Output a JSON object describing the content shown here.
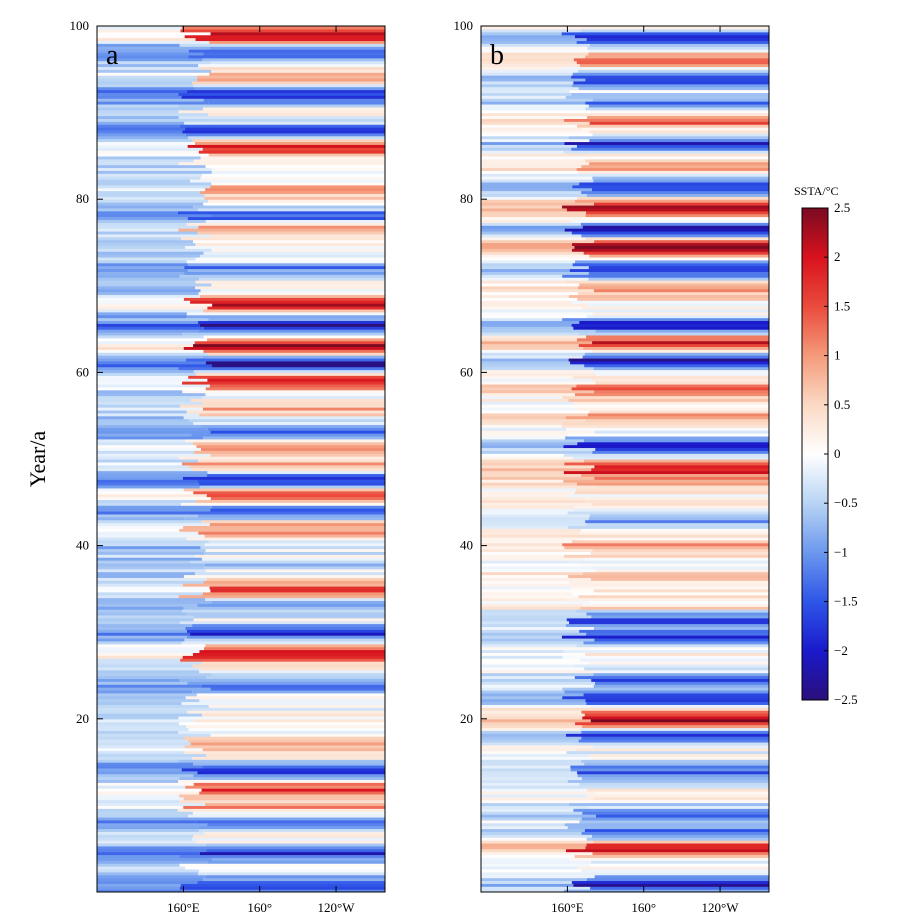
{
  "chart_data": [
    {
      "type": "heatmap",
      "panel_label": "a",
      "xlabel": "",
      "ylabel": "Year/a",
      "x_ticks": [
        "160°E",
        "160°",
        "120°W"
      ],
      "y_ticks": [
        20,
        40,
        60,
        80,
        100
      ],
      "ylim": [
        0,
        100
      ],
      "grid": false,
      "anomaly_events": [
        {
          "year": 1,
          "value": -1.6
        },
        {
          "year": 4.5,
          "value": -1.8
        },
        {
          "year": 8,
          "value": -1.2
        },
        {
          "year": 10,
          "value": 1.0
        },
        {
          "year": 12,
          "value": 1.6
        },
        {
          "year": 14,
          "value": -2.0
        },
        {
          "year": 17,
          "value": 0.8
        },
        {
          "year": 24,
          "value": -1.3
        },
        {
          "year": 27.5,
          "value": 1.9
        },
        {
          "year": 30,
          "value": -1.8
        },
        {
          "year": 33,
          "value": -0.9
        },
        {
          "year": 35,
          "value": 1.6
        },
        {
          "year": 38,
          "value": -0.6
        },
        {
          "year": 42,
          "value": 1.0
        },
        {
          "year": 44,
          "value": -1.5
        },
        {
          "year": 46,
          "value": 1.7
        },
        {
          "year": 47.5,
          "value": -2.0
        },
        {
          "year": 49.5,
          "value": 0.8
        },
        {
          "year": 51.5,
          "value": 1.1
        },
        {
          "year": 53,
          "value": -1.3
        },
        {
          "year": 56,
          "value": 0.8
        },
        {
          "year": 59,
          "value": 2.2
        },
        {
          "year": 61,
          "value": -2.2
        },
        {
          "year": 63,
          "value": 2.4
        },
        {
          "year": 65.5,
          "value": -2.2
        },
        {
          "year": 68,
          "value": 2.0
        },
        {
          "year": 72,
          "value": -1.2
        },
        {
          "year": 77,
          "value": 1.0
        },
        {
          "year": 78,
          "value": -1.6
        },
        {
          "year": 81,
          "value": 0.9
        },
        {
          "year": 86,
          "value": 1.9
        },
        {
          "year": 88,
          "value": -1.5
        },
        {
          "year": 92,
          "value": -2.0
        },
        {
          "year": 94,
          "value": 1.0
        },
        {
          "year": 97,
          "value": -1.3
        },
        {
          "year": 99,
          "value": 2.3
        }
      ]
    },
    {
      "type": "heatmap",
      "panel_label": "b",
      "xlabel": "",
      "ylabel": "",
      "x_ticks": [
        "160°E",
        "160°",
        "120°W"
      ],
      "y_ticks": [
        20,
        40,
        60,
        80,
        100
      ],
      "ylim": [
        0,
        100
      ],
      "grid": false,
      "anomaly_events": [
        {
          "year": 1,
          "value": -2.0
        },
        {
          "year": 5,
          "value": 2.0
        },
        {
          "year": 7,
          "value": -1.4
        },
        {
          "year": 9,
          "value": -1.5
        },
        {
          "year": 14,
          "value": -1.5
        },
        {
          "year": 18,
          "value": -1.7
        },
        {
          "year": 20,
          "value": 2.4
        },
        {
          "year": 22.5,
          "value": -2.0
        },
        {
          "year": 24.5,
          "value": -1.3
        },
        {
          "year": 29.5,
          "value": -1.9
        },
        {
          "year": 31.5,
          "value": -1.6
        },
        {
          "year": 33,
          "value": 0.5
        },
        {
          "year": 36.5,
          "value": 0.6
        },
        {
          "year": 40,
          "value": 0.8
        },
        {
          "year": 43,
          "value": -0.9
        },
        {
          "year": 47.5,
          "value": 0.7
        },
        {
          "year": 49,
          "value": 2.1
        },
        {
          "year": 51.5,
          "value": -2.0
        },
        {
          "year": 55,
          "value": 0.9
        },
        {
          "year": 58,
          "value": 1.5
        },
        {
          "year": 61.5,
          "value": -2.0
        },
        {
          "year": 63.5,
          "value": 1.9
        },
        {
          "year": 65.5,
          "value": -2.1
        },
        {
          "year": 69.5,
          "value": 0.8
        },
        {
          "year": 72,
          "value": -1.9
        },
        {
          "year": 74.5,
          "value": 2.4
        },
        {
          "year": 76.5,
          "value": -2.1
        },
        {
          "year": 79,
          "value": 2.3
        },
        {
          "year": 81.5,
          "value": -1.8
        },
        {
          "year": 84,
          "value": 1.0
        },
        {
          "year": 86.5,
          "value": -1.8
        },
        {
          "year": 89,
          "value": 1.3
        },
        {
          "year": 91,
          "value": -1.3
        },
        {
          "year": 94,
          "value": -2.0
        },
        {
          "year": 96,
          "value": 1.4
        },
        {
          "year": 98.5,
          "value": -1.9
        }
      ]
    }
  ],
  "colorbar": {
    "title": "SSTA/°C",
    "ticks": [
      "2.5",
      "2",
      "1.5",
      "1",
      "0.5",
      "0",
      "−0.5",
      "−1",
      "−1.5",
      "−2",
      "−2.5"
    ],
    "range": [
      -2.5,
      2.5
    ],
    "colors": {
      "neg_2_5": "#2b0f7a",
      "neg_2": "#1a1acc",
      "neg_1_5": "#2f55e8",
      "neg_1": "#6c98ee",
      "neg_0_5": "#b8d4f4",
      "zero": "#ffffff",
      "pos_0_5": "#fbd9c4",
      "pos_1": "#f49a7a",
      "pos_1_5": "#ea4b3c",
      "pos_2": "#d8121d",
      "pos_2_5": "#7a0a22"
    }
  }
}
